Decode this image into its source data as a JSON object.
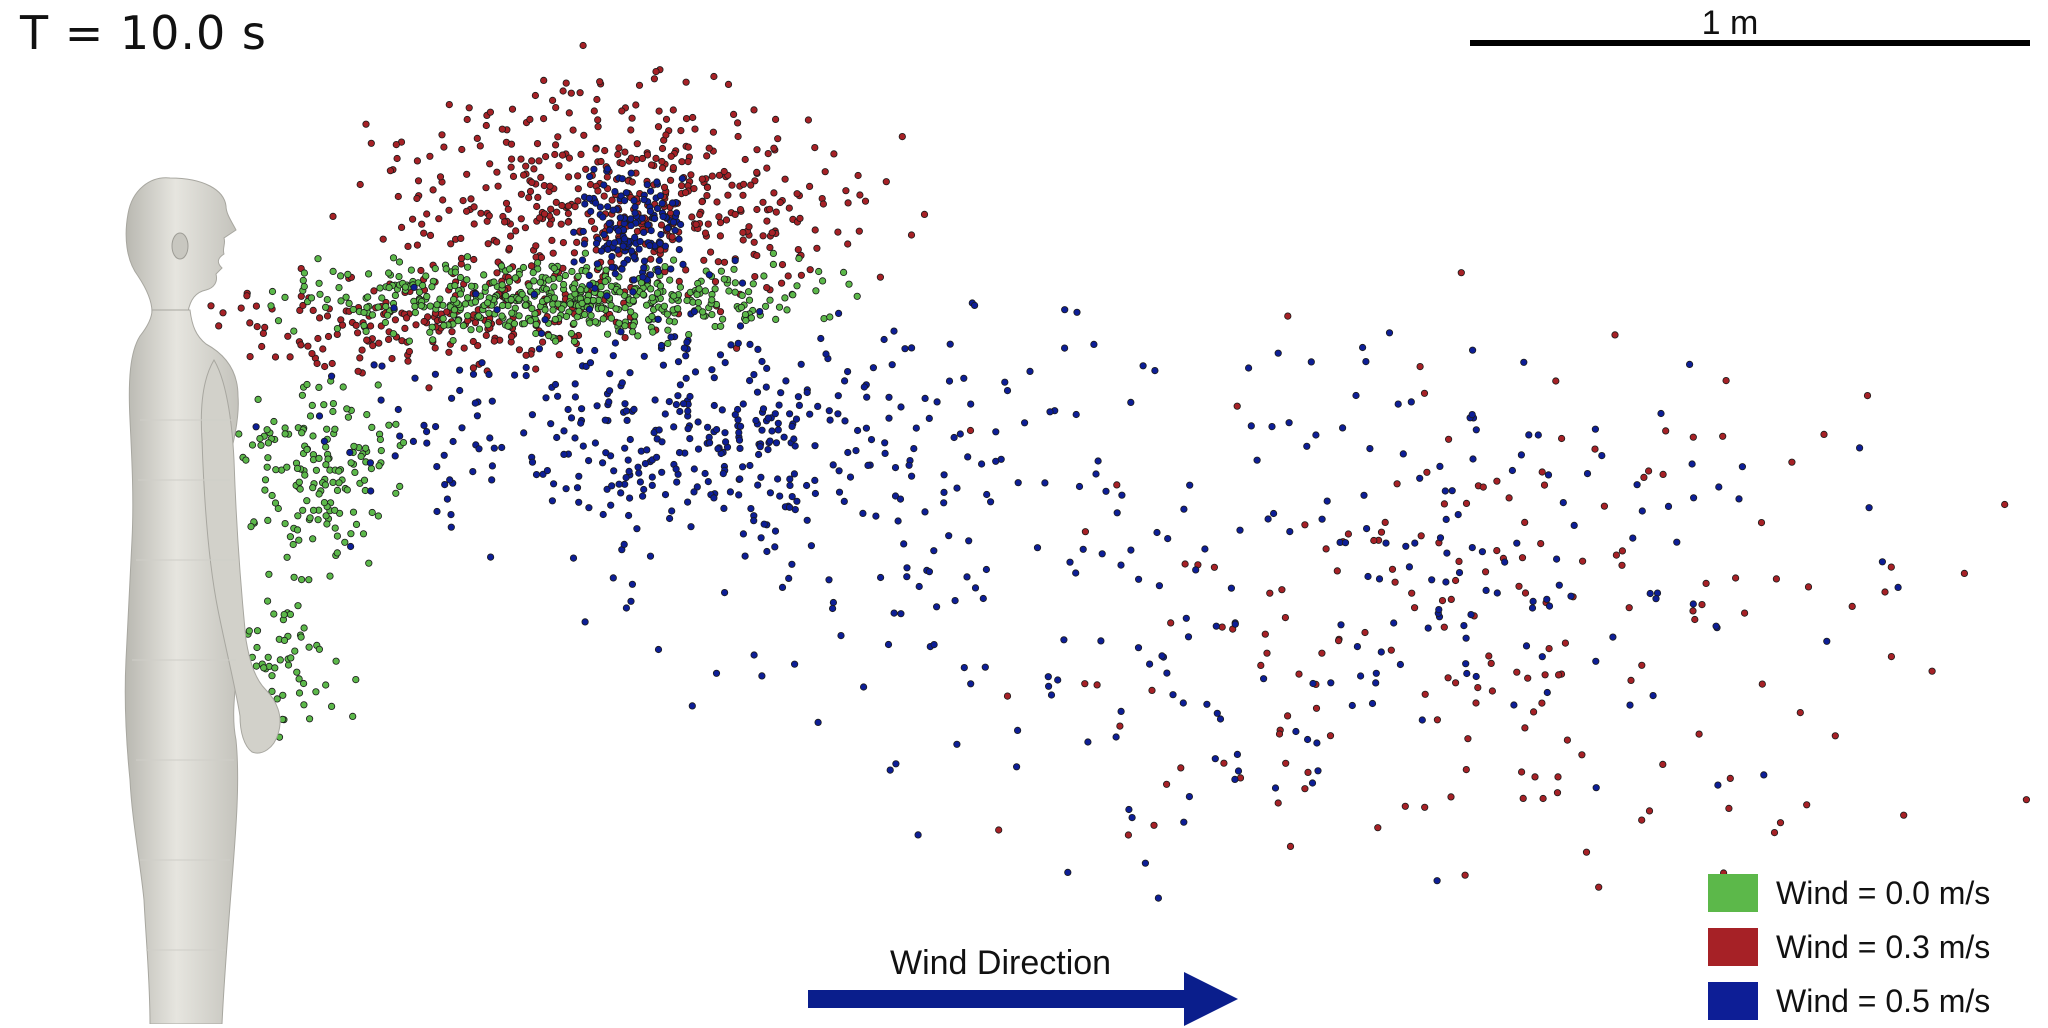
{
  "time_label": "T = 10.0 s",
  "scale_bar": {
    "label": "1 m"
  },
  "wind_direction": {
    "label": "Wind Direction",
    "arrow_color": "#0a1e8c"
  },
  "legend": [
    {
      "label": "Wind = 0.0 m/s",
      "color": "#5cb84a"
    },
    {
      "label": "Wind = 0.3 m/s",
      "color": "#a62126"
    },
    {
      "label": "Wind = 0.5 m/s",
      "color": "#0d1e96"
    }
  ],
  "figure": {
    "subject": "human-body-model",
    "body_color": "#d9d8d2"
  }
}
